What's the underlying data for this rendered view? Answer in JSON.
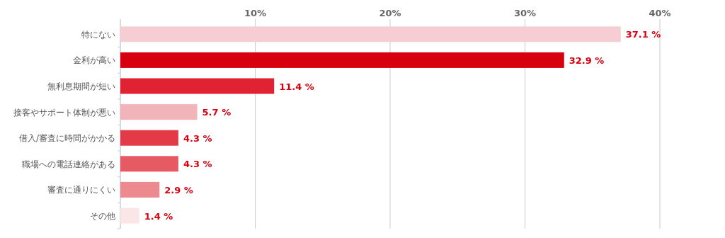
{
  "chart_data": {
    "type": "bar",
    "orientation": "horizontal",
    "categories": [
      "特にない",
      "金利が高い",
      "無利息期間が短い",
      "接客やサポート体制が悪い",
      "借入/審査に時間がかかる",
      "職場への電話連絡がある",
      "審査に通りにくい",
      "その他"
    ],
    "values": [
      37.1,
      32.9,
      11.4,
      5.7,
      4.3,
      4.3,
      2.9,
      1.4
    ],
    "value_labels": [
      "37.1 %",
      "32.9 %",
      "11.4 %",
      "5.7 %",
      "4.3 %",
      "4.3 %",
      "2.9 %",
      "1.4 %"
    ],
    "colors": [
      "#f6cdd2",
      "#d7000f",
      "#e02233",
      "#f1b4b8",
      "#e33a48",
      "#e65a63",
      "#ed8a8f",
      "#fbe5e7"
    ],
    "xlim": [
      0,
      40
    ],
    "xticks": [
      {
        "value": 0,
        "label": null
      },
      {
        "value": 10,
        "label": "10%"
      },
      {
        "value": 20,
        "label": "20%"
      },
      {
        "value": 30,
        "label": "30%"
      },
      {
        "value": 40,
        "label": "40%"
      }
    ],
    "grid": "x"
  }
}
